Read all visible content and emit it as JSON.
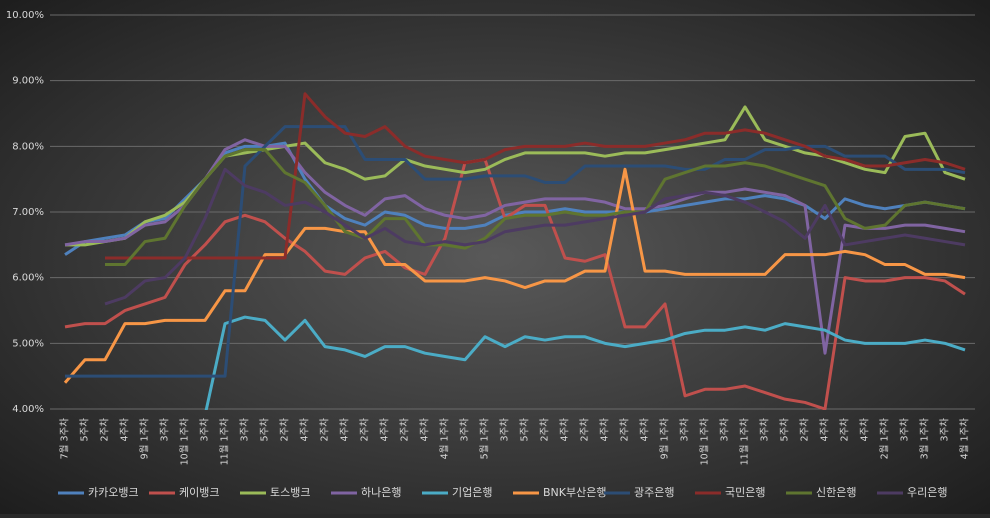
{
  "chart_data": {
    "type": "line",
    "categories": [
      "7월 3주차",
      "5주차",
      "2주차",
      "4주차",
      "9월 1주차",
      "3주차",
      "10월 1주차",
      "3주차",
      "11월 1주차",
      "3주차",
      "5주차",
      "2주차",
      "4주차",
      "2주차",
      "4주차",
      "2주차",
      "4주차",
      "2주차",
      "4주차",
      "4월 1주차",
      "3주차",
      "5월 1주차",
      "3주차",
      "5주차",
      "2주차",
      "4주차",
      "2주차",
      "4주차",
      "2주차",
      "4주차",
      "9월 1주차",
      "3주차",
      "10월 1주차",
      "3주차",
      "11월 1주차",
      "3주차",
      "5주차",
      "2주차",
      "4주차",
      "2주차",
      "4주차",
      "2월 1주차",
      "3주차",
      "3월 1주차",
      "3주차",
      "4월 1주차"
    ],
    "ylim": [
      4,
      10
    ],
    "yticks": [
      {
        "value": 4,
        "label": "4.00%"
      },
      {
        "value": 5,
        "label": "5.00%"
      },
      {
        "value": 6,
        "label": "6.00%"
      },
      {
        "value": 7,
        "label": "7.00%"
      },
      {
        "value": 8,
        "label": "8.00%"
      },
      {
        "value": 9,
        "label": "9.00%"
      },
      {
        "value": 10,
        "label": "10.00%"
      }
    ],
    "grid": true,
    "legend": "bottom",
    "series": [
      {
        "name": "카카오뱅크",
        "color": "#4f81bd",
        "values": [
          6.35,
          6.55,
          6.6,
          6.65,
          6.85,
          6.9,
          7.2,
          7.5,
          7.9,
          8.0,
          8.0,
          8.05,
          7.5,
          7.1,
          6.9,
          6.8,
          7.0,
          6.95,
          6.8,
          6.75,
          6.75,
          6.8,
          6.95,
          7.0,
          7.0,
          7.05,
          7.0,
          7.0,
          7.0,
          7.0,
          7.05,
          7.1,
          7.15,
          7.2,
          7.2,
          7.25,
          7.2,
          7.1,
          6.9,
          7.2,
          7.1,
          7.05,
          7.1,
          7.15,
          7.1,
          7.05
        ]
      },
      {
        "name": "케이뱅크",
        "color": "#c0504d",
        "values": [
          5.25,
          5.3,
          5.3,
          5.5,
          5.6,
          5.7,
          6.2,
          6.5,
          6.85,
          6.95,
          6.85,
          6.6,
          6.4,
          6.1,
          6.05,
          6.3,
          6.4,
          6.15,
          6.05,
          6.6,
          7.75,
          7.8,
          6.9,
          7.1,
          7.1,
          6.3,
          6.25,
          6.35,
          5.25,
          5.25,
          5.6,
          4.2,
          4.3,
          4.3,
          4.35,
          4.25,
          4.15,
          4.1,
          4.0,
          6.0,
          5.95,
          5.95,
          6.0,
          6.0,
          5.95,
          5.75
        ]
      },
      {
        "name": "토스뱅크",
        "color": "#9bbb59",
        "values": [
          6.5,
          6.5,
          6.55,
          6.6,
          6.85,
          6.95,
          7.15,
          7.5,
          7.85,
          7.9,
          7.95,
          8.0,
          8.05,
          7.75,
          7.65,
          7.5,
          7.55,
          7.8,
          7.7,
          7.65,
          7.6,
          7.65,
          7.8,
          7.9,
          7.9,
          7.9,
          7.9,
          7.85,
          7.9,
          7.9,
          7.95,
          8.0,
          8.05,
          8.1,
          8.6,
          8.1,
          8.0,
          7.9,
          7.85,
          7.75,
          7.65,
          7.6,
          8.15,
          8.2,
          7.6,
          7.5
        ]
      },
      {
        "name": "하나은행",
        "color": "#8064a2",
        "values": [
          6.5,
          6.55,
          6.55,
          6.6,
          6.8,
          6.85,
          7.1,
          7.5,
          7.95,
          8.1,
          8.0,
          8.0,
          7.6,
          7.3,
          7.1,
          6.95,
          7.2,
          7.25,
          7.05,
          6.95,
          6.9,
          6.95,
          7.1,
          7.15,
          7.2,
          7.2,
          7.2,
          7.15,
          7.05,
          7.05,
          7.1,
          7.2,
          7.3,
          7.3,
          7.35,
          7.3,
          7.25,
          7.1,
          4.85,
          6.8,
          6.75,
          6.75,
          6.8,
          6.8,
          6.75,
          6.7
        ]
      },
      {
        "name": "기업은행",
        "color": "#4bacc6",
        "values": [
          null,
          null,
          null,
          null,
          null,
          null,
          null,
          3.9,
          5.3,
          5.4,
          5.35,
          5.05,
          5.35,
          4.95,
          4.9,
          4.8,
          4.95,
          4.95,
          4.85,
          4.8,
          4.75,
          5.1,
          4.95,
          5.1,
          5.05,
          5.1,
          5.1,
          5.0,
          4.95,
          5.0,
          5.05,
          5.15,
          5.2,
          5.2,
          5.25,
          5.2,
          5.3,
          5.25,
          5.2,
          5.05,
          5.0,
          5.0,
          5.0,
          5.05,
          5.0,
          4.9
        ]
      },
      {
        "name": "BNK부산은행",
        "color": "#f79646",
        "values": [
          4.4,
          4.75,
          4.75,
          5.3,
          5.3,
          5.35,
          5.35,
          5.35,
          5.8,
          5.8,
          6.35,
          6.35,
          6.75,
          6.75,
          6.7,
          6.7,
          6.2,
          6.2,
          5.95,
          5.95,
          5.95,
          6.0,
          5.95,
          5.85,
          5.95,
          5.95,
          6.1,
          6.1,
          7.65,
          6.1,
          6.1,
          6.05,
          6.05,
          6.05,
          6.05,
          6.05,
          6.35,
          6.35,
          6.35,
          6.4,
          6.35,
          6.2,
          6.2,
          6.05,
          6.05,
          6.0
        ]
      },
      {
        "name": "광주은행",
        "color": "#2c4d75",
        "values": [
          4.5,
          4.5,
          4.5,
          4.5,
          4.5,
          4.5,
          4.5,
          4.5,
          4.5,
          7.7,
          8.0,
          8.3,
          8.3,
          8.3,
          8.3,
          7.8,
          7.8,
          7.8,
          7.5,
          7.5,
          7.5,
          7.55,
          7.55,
          7.55,
          7.45,
          7.45,
          7.7,
          7.7,
          7.7,
          7.7,
          7.7,
          7.65,
          7.65,
          7.8,
          7.8,
          7.95,
          7.95,
          8.0,
          8.0,
          7.85,
          7.85,
          7.85,
          7.65,
          7.65,
          7.65,
          7.6
        ]
      },
      {
        "name": "국민은행",
        "color": "#8b2c2a",
        "values": [
          null,
          null,
          6.3,
          6.3,
          6.3,
          6.3,
          6.3,
          6.3,
          6.3,
          6.3,
          6.3,
          6.3,
          8.8,
          8.45,
          8.2,
          8.15,
          8.3,
          8.0,
          7.85,
          7.8,
          7.75,
          7.8,
          7.95,
          8.0,
          8.0,
          8.0,
          8.05,
          8.0,
          8.0,
          8.0,
          8.05,
          8.1,
          8.2,
          8.2,
          8.25,
          8.2,
          8.1,
          8.0,
          7.85,
          7.8,
          7.7,
          7.7,
          7.75,
          7.8,
          7.75,
          7.65
        ]
      },
      {
        "name": "신한은행",
        "color": "#5f7530",
        "values": [
          null,
          null,
          6.2,
          6.2,
          6.55,
          6.6,
          7.1,
          7.5,
          7.85,
          7.95,
          7.95,
          7.6,
          7.45,
          7.1,
          6.7,
          6.6,
          6.9,
          6.9,
          6.5,
          6.5,
          6.45,
          6.6,
          6.9,
          6.95,
          6.95,
          7.0,
          6.95,
          6.95,
          7.0,
          7.0,
          7.5,
          7.6,
          7.7,
          7.7,
          7.75,
          7.7,
          7.6,
          7.5,
          7.4,
          6.9,
          6.75,
          6.8,
          7.1,
          7.15,
          7.1,
          7.05
        ]
      },
      {
        "name": "우리은행",
        "color": "#4d3b62",
        "values": [
          null,
          null,
          5.6,
          5.7,
          5.95,
          6.0,
          6.3,
          6.9,
          7.65,
          7.4,
          7.3,
          7.1,
          7.15,
          7.0,
          6.8,
          6.6,
          6.75,
          6.55,
          6.5,
          6.55,
          6.5,
          6.55,
          6.7,
          6.75,
          6.8,
          6.8,
          6.85,
          6.9,
          6.95,
          7.0,
          7.2,
          7.25,
          7.3,
          7.25,
          7.15,
          7.0,
          6.85,
          6.6,
          7.1,
          6.5,
          6.55,
          6.6,
          6.65,
          6.6,
          6.55,
          6.5
        ]
      }
    ]
  }
}
